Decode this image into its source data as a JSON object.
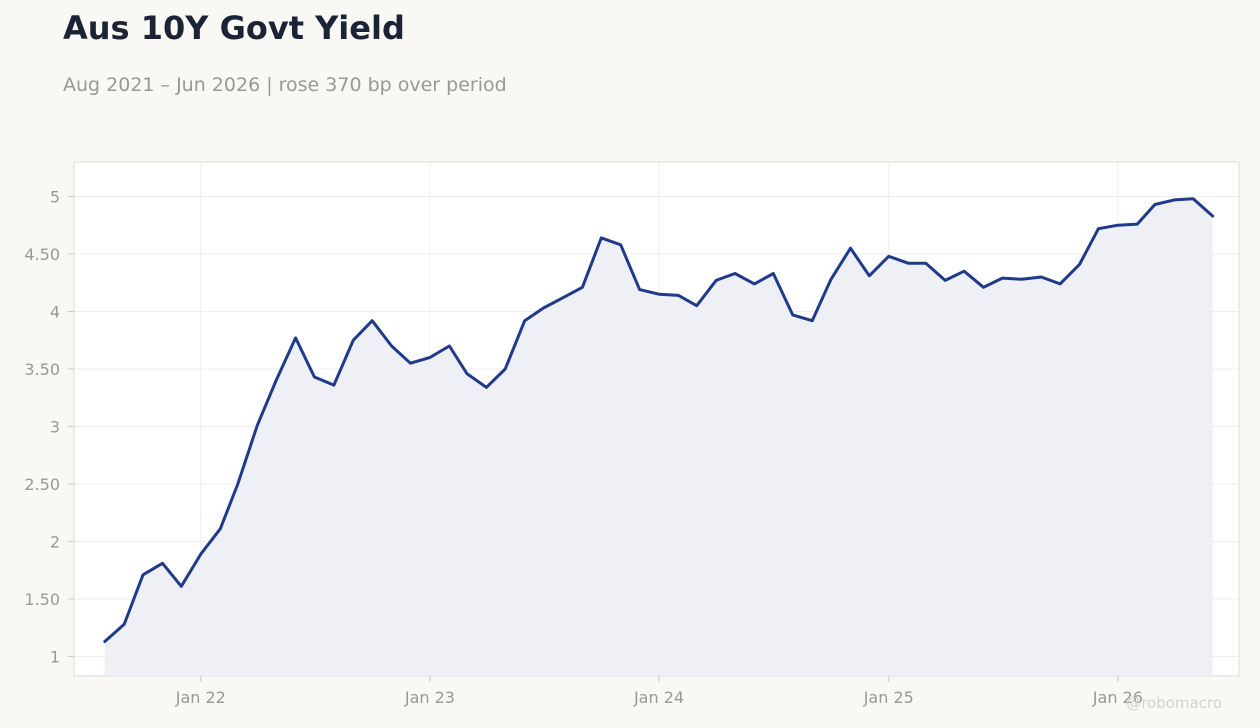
{
  "header": {
    "title": "Aus 10Y Govt Yield",
    "subtitle": "Aug 2021 – Jun 2026 | rose 370 bp over period"
  },
  "footer": {
    "watermark": "@robomacro"
  },
  "colors": {
    "line": "#1f3a8a",
    "area_fill": "#edeef5",
    "plot_background": "#ffffff",
    "page_background": "#f9f8f5",
    "grid": "#efeeec",
    "tick_text": "#9a9894"
  },
  "chart_data": {
    "type": "area",
    "title": "Aus 10Y Govt Yield",
    "subtitle": "Aug 2021 – Jun 2026 | rose 370 bp over period",
    "xlabel": "",
    "ylabel": "",
    "x_ticks": [
      "Jan 22",
      "Jan 23",
      "Jan 24",
      "Jan 25",
      "Jan 26"
    ],
    "x_tick_dates": [
      "2022-01",
      "2023-01",
      "2024-01",
      "2025-01",
      "2026-01"
    ],
    "y_ticks": [
      "1",
      "1.50",
      "2",
      "2.50",
      "3",
      "3.50",
      "4",
      "4.50",
      "5"
    ],
    "y_tick_values": [
      1,
      1.5,
      2,
      2.5,
      3,
      3.5,
      4,
      4.5,
      5
    ],
    "ylim": [
      0.83,
      5.3
    ],
    "xlim": [
      "2021-06-13",
      "2026-07-13"
    ],
    "grid": true,
    "legend": "none",
    "series": [
      {
        "x": [
          "2021-08",
          "2021-09",
          "2021-10",
          "2021-11",
          "2021-12",
          "2022-01",
          "2022-02",
          "2022-03",
          "2022-04",
          "2022-05",
          "2022-06",
          "2022-07",
          "2022-08",
          "2022-09",
          "2022-10",
          "2022-11",
          "2022-12",
          "2023-01",
          "2023-02",
          "2023-03",
          "2023-04",
          "2023-05",
          "2023-06",
          "2023-07",
          "2023-08",
          "2023-09",
          "2023-10",
          "2023-11",
          "2023-12",
          "2024-01",
          "2024-02",
          "2024-03",
          "2024-04",
          "2024-05",
          "2024-06",
          "2024-07",
          "2024-08",
          "2024-09",
          "2024-10",
          "2024-11",
          "2024-12",
          "2025-01",
          "2025-02",
          "2025-03",
          "2025-04",
          "2025-05",
          "2025-06",
          "2025-07",
          "2025-08",
          "2025-09",
          "2025-10",
          "2025-11",
          "2025-12",
          "2026-01",
          "2026-02",
          "2026-03",
          "2026-04",
          "2026-05",
          "2026-06"
        ],
        "values": [
          1.13,
          1.28,
          1.71,
          1.81,
          1.61,
          1.89,
          2.11,
          2.5,
          3.01,
          3.4,
          3.77,
          3.43,
          3.36,
          3.75,
          3.92,
          3.7,
          3.55,
          3.6,
          3.7,
          3.46,
          3.34,
          3.5,
          3.92,
          4.03,
          4.12,
          4.21,
          4.64,
          4.58,
          4.19,
          4.15,
          4.14,
          4.05,
          4.27,
          4.33,
          4.24,
          4.33,
          3.97,
          3.92,
          4.28,
          4.55,
          4.31,
          4.48,
          4.42,
          4.42,
          4.27,
          4.35,
          4.21,
          4.29,
          4.28,
          4.3,
          4.24,
          4.41,
          4.72,
          4.75,
          4.76,
          4.93,
          4.97,
          4.98,
          4.83
        ]
      }
    ]
  }
}
